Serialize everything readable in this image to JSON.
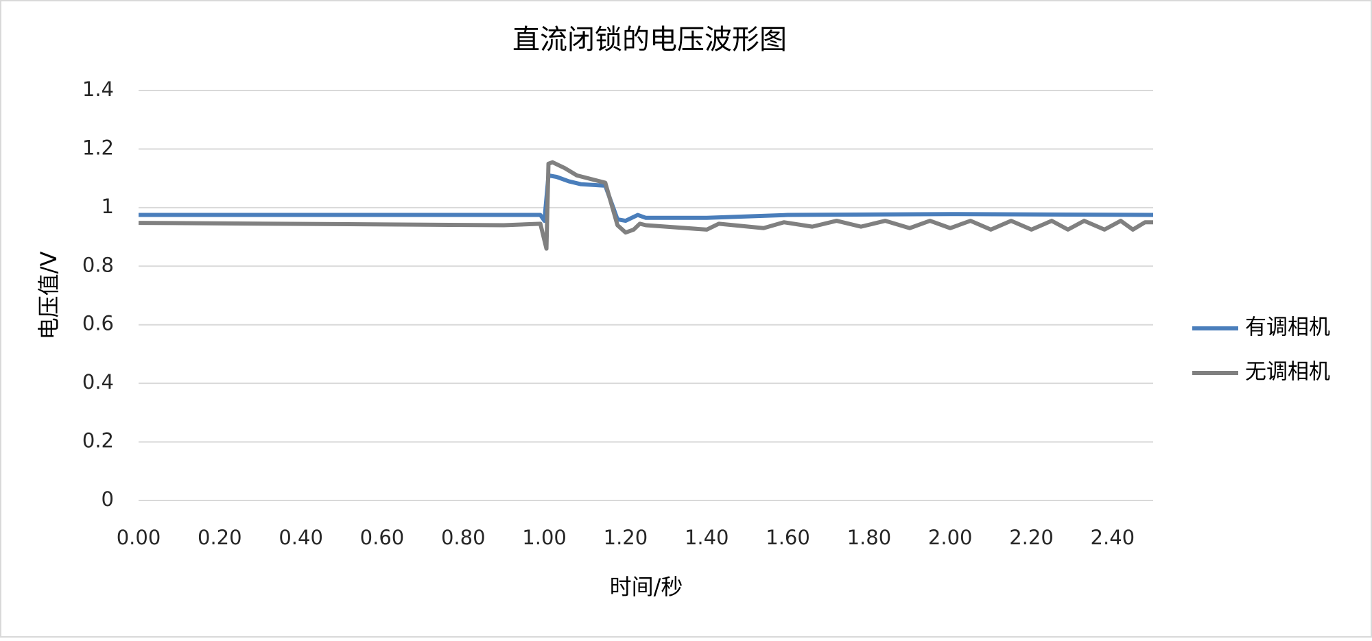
{
  "chart_data": {
    "type": "line",
    "title": "直流闭锁的电压波形图",
    "x_label": "时间/秒",
    "y_label": "电压值/V",
    "xlim": [
      0,
      2.5
    ],
    "ylim": [
      0,
      1.4
    ],
    "xticks": [
      {
        "value": 0,
        "label": "0.00"
      },
      {
        "value": 0.2,
        "label": "0.20"
      },
      {
        "value": 0.4,
        "label": "0.40"
      },
      {
        "value": 0.6,
        "label": "0.60"
      },
      {
        "value": 0.8,
        "label": "0.80"
      },
      {
        "value": 1,
        "label": "1.00"
      },
      {
        "value": 1.2,
        "label": "1.20"
      },
      {
        "value": 1.4,
        "label": "1.40"
      },
      {
        "value": 1.6,
        "label": "1.60"
      },
      {
        "value": 1.8,
        "label": "1.80"
      },
      {
        "value": 2,
        "label": "2.00"
      },
      {
        "value": 2.2,
        "label": "2.20"
      },
      {
        "value": 2.4,
        "label": "2.40"
      }
    ],
    "yticks": [
      0,
      0.2,
      0.4,
      0.6,
      0.8,
      1,
      1.2,
      1.4
    ],
    "grid": true,
    "legend": "right",
    "series": [
      {
        "name": "有调相机",
        "color": "#4a7ebb",
        "x": [
          0,
          0.99,
          1.0,
          1.01,
          1.03,
          1.06,
          1.09,
          1.15,
          1.18,
          1.2,
          1.23,
          1.25,
          1.4,
          1.6,
          2.0,
          2.5
        ],
        "values": [
          0.975,
          0.975,
          0.955,
          1.11,
          1.105,
          1.09,
          1.08,
          1.075,
          0.96,
          0.955,
          0.975,
          0.965,
          0.965,
          0.975,
          0.978,
          0.975
        ]
      },
      {
        "name": "无调相机",
        "color": "#808080",
        "x": [
          0,
          0.9,
          0.99,
          1.005,
          1.01,
          1.02,
          1.05,
          1.08,
          1.15,
          1.18,
          1.2,
          1.22,
          1.235,
          1.25,
          1.4,
          1.43,
          1.54,
          1.59,
          1.66,
          1.72,
          1.78,
          1.84,
          1.9,
          1.95,
          2.0,
          2.05,
          2.1,
          2.15,
          2.2,
          2.25,
          2.29,
          2.33,
          2.38,
          2.42,
          2.45,
          2.48,
          2.5
        ],
        "values": [
          0.948,
          0.94,
          0.945,
          0.86,
          1.15,
          1.155,
          1.135,
          1.11,
          1.085,
          0.94,
          0.915,
          0.925,
          0.945,
          0.94,
          0.925,
          0.945,
          0.93,
          0.95,
          0.935,
          0.955,
          0.935,
          0.955,
          0.93,
          0.955,
          0.93,
          0.955,
          0.925,
          0.955,
          0.925,
          0.955,
          0.925,
          0.955,
          0.925,
          0.955,
          0.925,
          0.95,
          0.95
        ]
      }
    ]
  }
}
